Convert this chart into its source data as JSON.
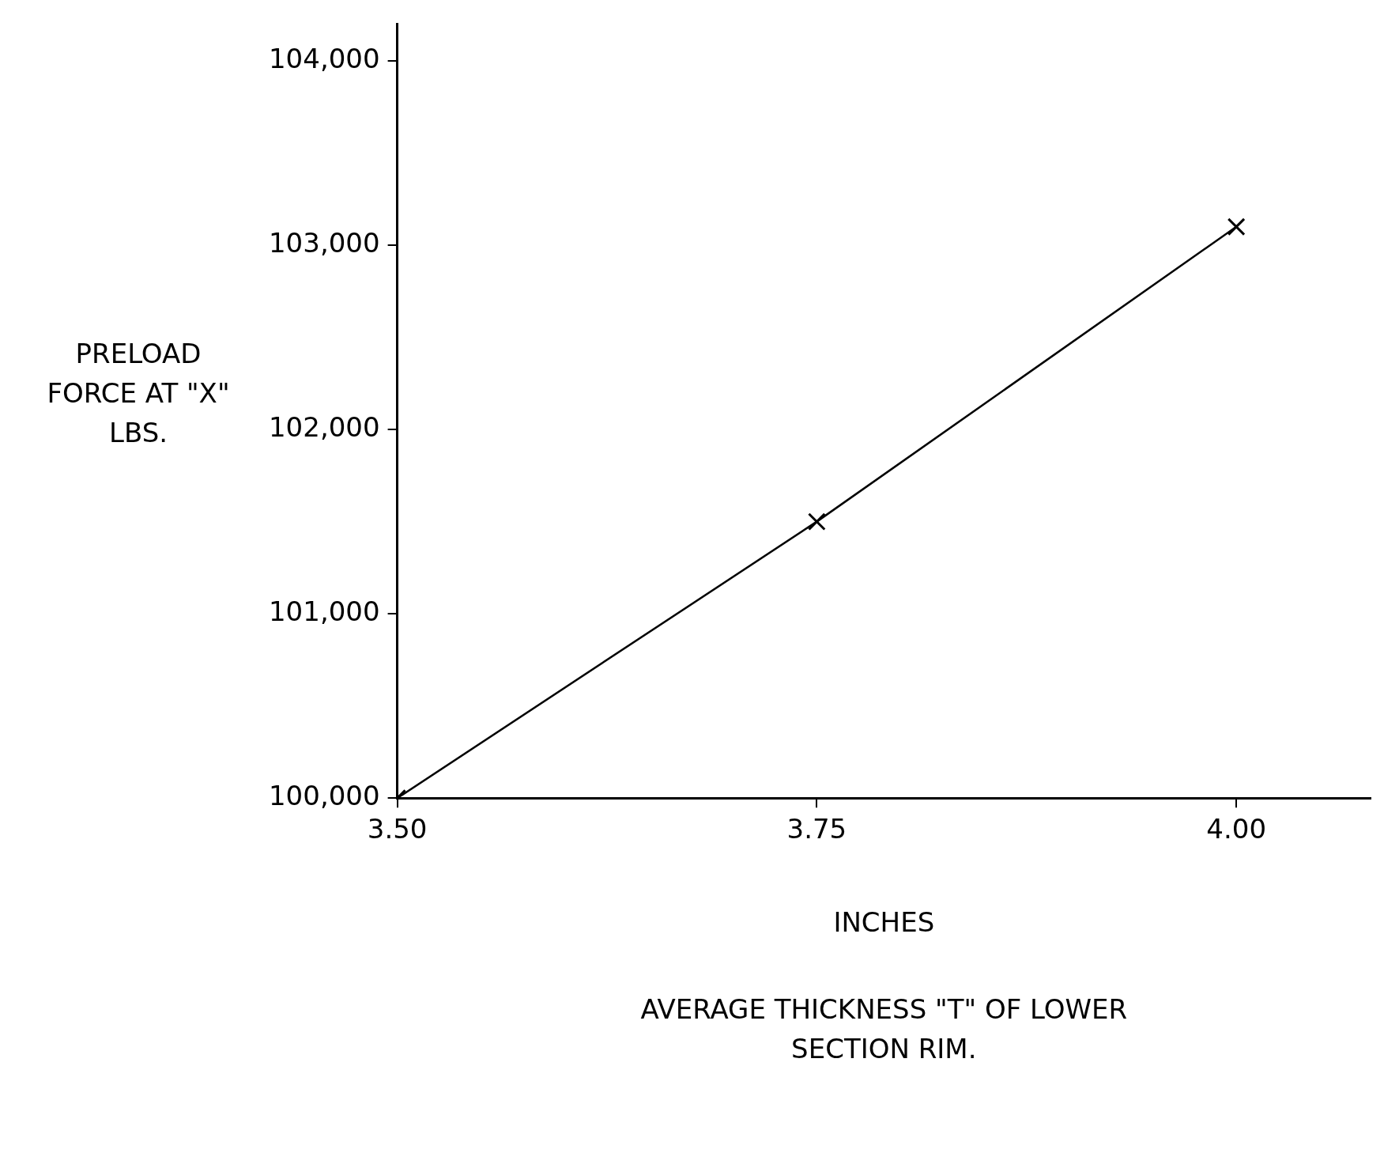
{
  "chart_data": {
    "type": "line",
    "xlabel": "INCHES",
    "ylabel": "PRELOAD FORCE AT \"X\" LBS.",
    "annotations": [
      "AVERAGE THICKNESS \"T\" OF LOWER SECTION RIM."
    ],
    "x": [
      3.5,
      3.75,
      4.0
    ],
    "series": [
      {
        "color": "#000000",
        "values": [
          100000,
          101500,
          103100
        ]
      }
    ],
    "xlim": [
      3.5,
      4.08
    ],
    "xticks": [
      {
        "value": 3.5,
        "label": "3.50"
      },
      {
        "value": 3.75,
        "label": "3.75"
      },
      {
        "value": 4.0,
        "label": "4.00"
      }
    ],
    "ylim": [
      100000,
      104200
    ],
    "yticks": [
      {
        "value": 100000,
        "label": "100,000"
      },
      {
        "value": 101000,
        "label": "101,000"
      },
      {
        "value": 102000,
        "label": "102,000"
      },
      {
        "value": 103000,
        "label": "103,000"
      },
      {
        "value": 104000,
        "label": "104,000"
      }
    ],
    "grid": false,
    "legend": false,
    "marker": "cross",
    "line_style": "solid"
  }
}
